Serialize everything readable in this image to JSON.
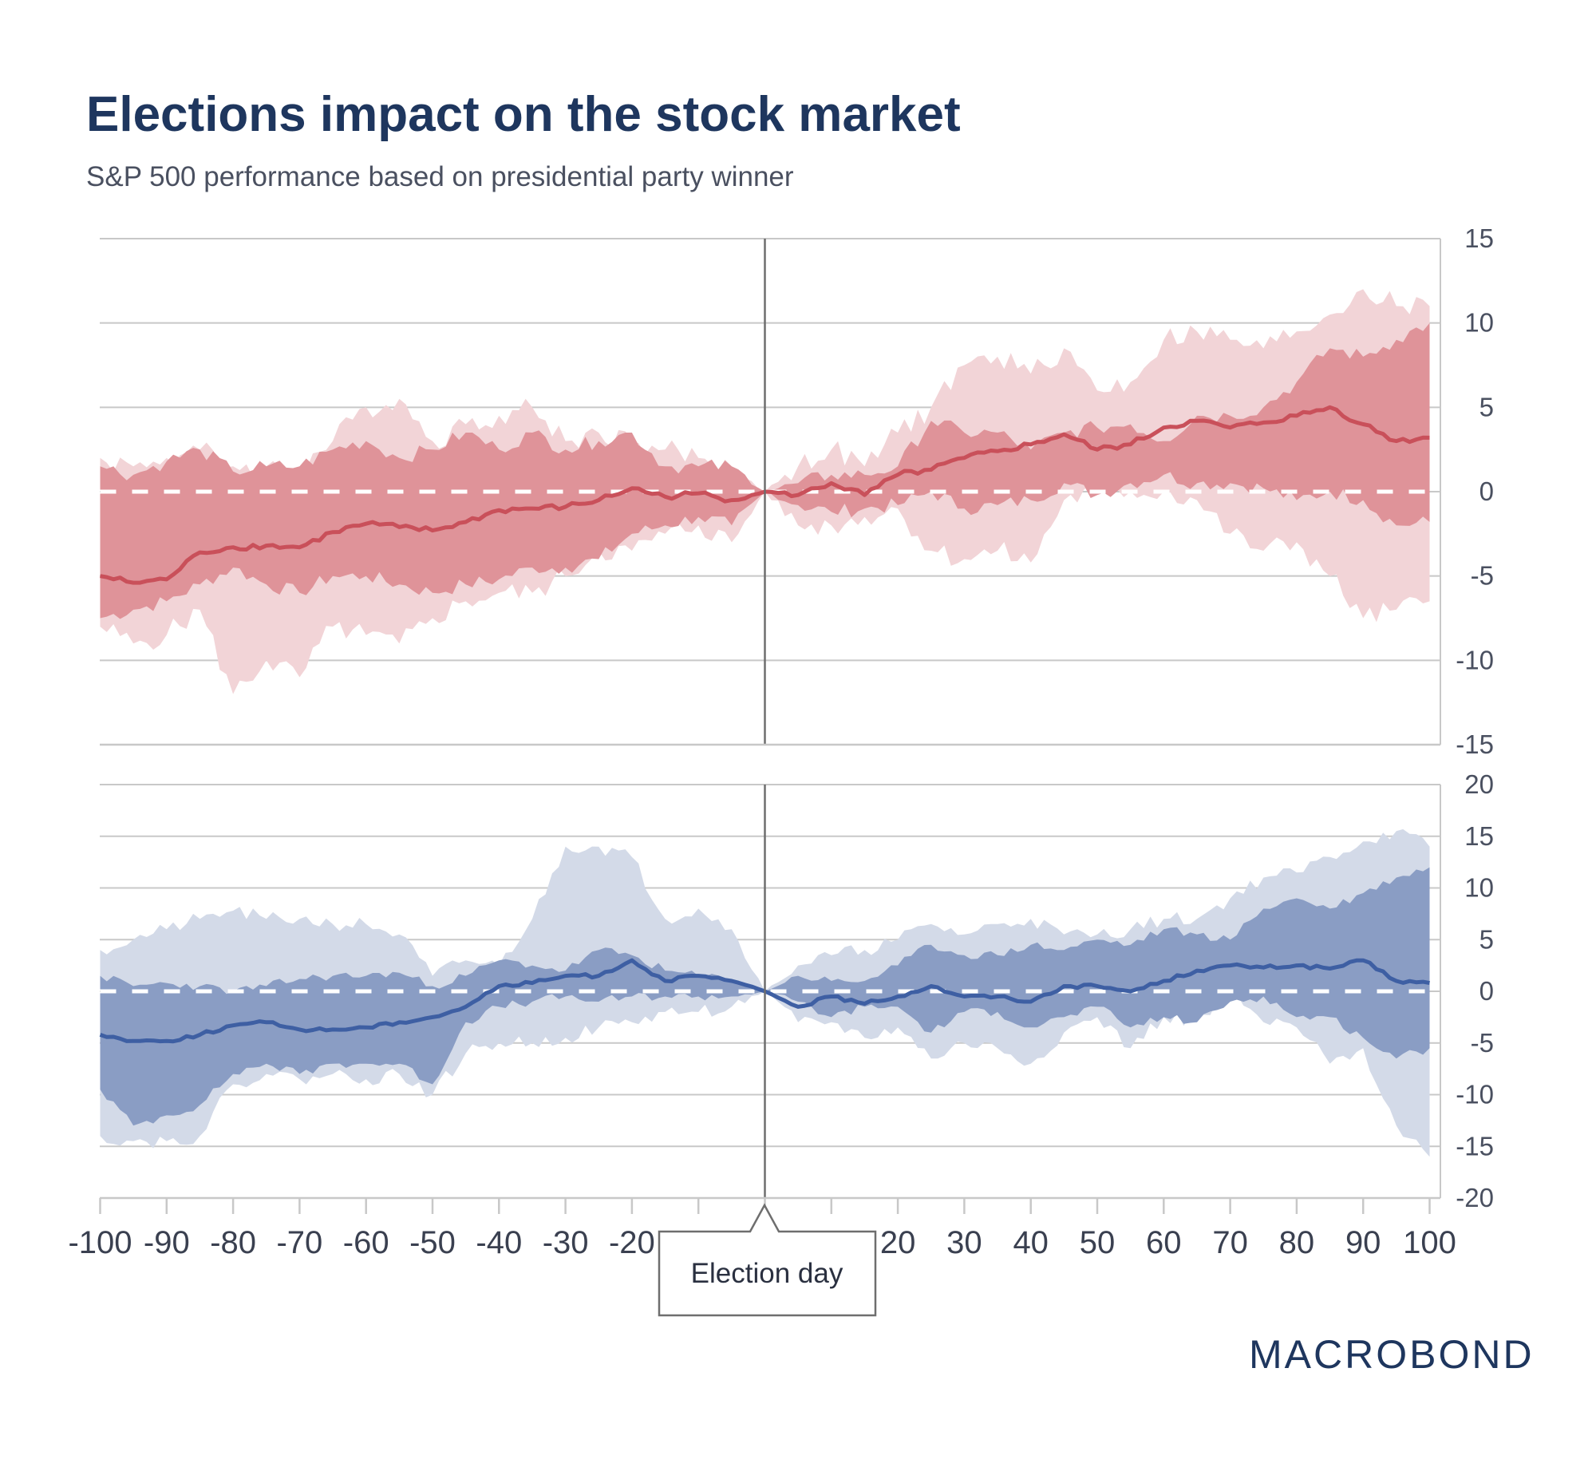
{
  "title": "Elections impact on the stock market",
  "subtitle": "S&P 500 performance based on presidential party winner",
  "annotation": "Election day",
  "logo": "MACROBOND",
  "colors": {
    "title": "#1e365e",
    "red_line": "#c9505a",
    "red_inner": "#df9399",
    "red_outer": "#f2d4d7",
    "blue_line": "#3e5fa3",
    "blue_inner": "#8a9dc4",
    "blue_outer": "#d3dae8",
    "zero_line": "#ffffff",
    "election_line": "#6e6e6e"
  },
  "chart_data": [
    {
      "type": "area",
      "x": [
        -100,
        -95,
        -90,
        -85,
        -80,
        -75,
        -70,
        -65,
        -60,
        -55,
        -50,
        -45,
        -40,
        -35,
        -30,
        -25,
        -20,
        -15,
        -10,
        -5,
        0,
        5,
        10,
        15,
        20,
        25,
        30,
        35,
        40,
        45,
        50,
        55,
        60,
        65,
        70,
        75,
        80,
        85,
        90,
        95,
        100
      ],
      "xlim": [
        -100,
        100
      ],
      "ylim": [
        -15,
        15
      ],
      "yticks": [
        -15,
        -10,
        -5,
        0,
        5,
        10,
        15
      ],
      "grid": true,
      "zero_line": "dashed",
      "color_theme": "red",
      "series": [
        {
          "role": "outer_band_upper",
          "values": [
            2,
            1.5,
            2,
            2.5,
            1.5,
            1.5,
            1.5,
            3,
            5,
            5.5,
            3,
            4,
            4.5,
            5,
            3,
            3.5,
            3,
            2.5,
            2,
            1.5,
            0,
            1.5,
            2.5,
            1.5,
            3.5,
            5,
            7.5,
            8,
            7,
            8.5,
            6,
            6.5,
            9,
            9.5,
            9,
            8.5,
            9.5,
            10.5,
            12,
            11,
            11
          ]
        },
        {
          "role": "outer_band_lower",
          "values": [
            -8,
            -9,
            -8.5,
            -7,
            -12,
            -10,
            -11,
            -8,
            -8.5,
            -9,
            -7.5,
            -6.5,
            -6,
            -6,
            -5,
            -3.5,
            -3.5,
            -2.5,
            -2,
            -3,
            0,
            -2,
            -2,
            -1.5,
            -1,
            -3.5,
            -4,
            -3.5,
            -4.2,
            -0.5,
            0,
            0,
            0,
            -0.5,
            -2.5,
            -3.5,
            -3,
            -5,
            -7.5,
            -7,
            -6.5
          ]
        },
        {
          "role": "inner_band_upper",
          "values": [
            1.5,
            1,
            1.8,
            2.5,
            1.2,
            1.5,
            1.5,
            2.5,
            3,
            2,
            2.5,
            3.5,
            2.5,
            3.5,
            2.5,
            3,
            3.5,
            1.5,
            1.5,
            1.5,
            0,
            0.5,
            1,
            1,
            1.5,
            4.2,
            3.5,
            3.5,
            2.5,
            3.5,
            3.8,
            4,
            3,
            4.5,
            4.5,
            5,
            6.5,
            8.5,
            8,
            9,
            10
          ]
        },
        {
          "role": "inner_band_lower",
          "values": [
            -7.5,
            -7,
            -6.5,
            -5.5,
            -4.5,
            -5.5,
            -6,
            -5,
            -5,
            -5.5,
            -6,
            -5.5,
            -5.2,
            -4.5,
            -4.5,
            -4,
            -2.5,
            -2,
            -1.5,
            -2,
            0,
            -0.8,
            -1.2,
            -1,
            -0.8,
            0,
            -1,
            -0.8,
            -0.5,
            0.5,
            -0.2,
            0.5,
            1,
            0.5,
            0.5,
            0.2,
            -0.5,
            0,
            -0.5,
            -2,
            -1.8
          ]
        },
        {
          "role": "median",
          "values": [
            -5,
            -5.4,
            -5.2,
            -3.6,
            -3.3,
            -3.2,
            -3.3,
            -2.4,
            -1.9,
            -2.1,
            -2.3,
            -1.8,
            -1.1,
            -1,
            -0.9,
            -0.5,
            0.2,
            -0.3,
            -0.1,
            -0.5,
            0,
            -0.2,
            0.5,
            -0.2,
            1,
            1.3,
            2,
            2.4,
            2.8,
            3.4,
            2.5,
            2.8,
            3.8,
            4.2,
            3.8,
            4.1,
            4.5,
            5,
            4,
            3,
            3.2
          ]
        }
      ]
    },
    {
      "type": "area",
      "x": [
        -100,
        -95,
        -90,
        -85,
        -80,
        -75,
        -70,
        -65,
        -60,
        -55,
        -50,
        -45,
        -40,
        -35,
        -30,
        -25,
        -20,
        -15,
        -10,
        -5,
        0,
        5,
        10,
        15,
        20,
        25,
        30,
        35,
        40,
        45,
        50,
        55,
        60,
        65,
        70,
        75,
        80,
        85,
        90,
        95,
        100
      ],
      "xlim": [
        -100,
        100
      ],
      "ylim": [
        -20,
        20
      ],
      "yticks": [
        -20,
        -15,
        -10,
        -5,
        0,
        5,
        10,
        15,
        20
      ],
      "xticks": [
        -100,
        -90,
        -80,
        -70,
        -60,
        -50,
        -40,
        -30,
        -20,
        -10,
        0,
        10,
        20,
        30,
        40,
        50,
        60,
        70,
        80,
        90,
        100
      ],
      "grid": true,
      "zero_line": "dashed",
      "color_theme": "blue",
      "series": [
        {
          "role": "outer_band_upper",
          "values": [
            4,
            5,
            6,
            7,
            7.8,
            7,
            7,
            6.5,
            6.5,
            5.5,
            1.5,
            3,
            2.5,
            7,
            14,
            14,
            13,
            7,
            8,
            6,
            0,
            2.5,
            3.5,
            4,
            5,
            6.5,
            5.5,
            6.5,
            7,
            5.5,
            5.5,
            6,
            7,
            7,
            9,
            11,
            11.5,
            13,
            14.5,
            15.5,
            14
          ]
        },
        {
          "role": "outer_band_lower",
          "values": [
            -14,
            -14.5,
            -14.5,
            -14,
            -9,
            -8,
            -8.5,
            -8,
            -8.5,
            -8,
            -10,
            -6,
            -5,
            -5,
            -4.5,
            -3.5,
            -3,
            -2,
            -2,
            -1.5,
            0,
            -3,
            -3,
            -4.5,
            -3.5,
            -6.5,
            -5,
            -5.5,
            -7,
            -4,
            -2.5,
            -5.5,
            -2.5,
            -3,
            -0.5,
            -3,
            -3.5,
            -7,
            -5.5,
            -13,
            -16
          ]
        },
        {
          "role": "inner_band_upper",
          "values": [
            1.5,
            0.5,
            0.8,
            0.5,
            0,
            0.5,
            1.2,
            1.5,
            1.5,
            1.8,
            0.5,
            1.5,
            3,
            2.5,
            2,
            4,
            3.5,
            2,
            1.5,
            1.2,
            0,
            1.5,
            1,
            1,
            2.5,
            4.5,
            3.5,
            3.5,
            4.5,
            4,
            5,
            4.5,
            6,
            5.5,
            5,
            8,
            9,
            8,
            9.5,
            11,
            12
          ]
        },
        {
          "role": "inner_band_lower",
          "values": [
            -9.5,
            -13,
            -12,
            -11,
            -8,
            -7,
            -8,
            -7,
            -7,
            -7,
            -9,
            -3,
            -1.5,
            -1,
            -0.5,
            -1,
            -0.5,
            -0.5,
            -0.5,
            -0.5,
            0,
            -1,
            -2.5,
            -1.5,
            -1.5,
            -4,
            -2,
            -2,
            -3.5,
            -2.5,
            -1.5,
            -3.5,
            -2.5,
            -3,
            -1,
            -0.5,
            -2.5,
            -2.5,
            -4.5,
            -6.5,
            -5.5
          ]
        },
        {
          "role": "median",
          "values": [
            -4.2,
            -4.8,
            -4.8,
            -4.2,
            -3.3,
            -3,
            -3.7,
            -3.7,
            -3.5,
            -3,
            -2.5,
            -1.5,
            0.5,
            0.8,
            1.5,
            1.5,
            3,
            1,
            1.5,
            1,
            0,
            -1.5,
            -0.5,
            -1.2,
            -0.5,
            0.5,
            -0.5,
            -0.5,
            -1,
            0.5,
            0.5,
            0,
            1,
            2,
            2.5,
            2.3,
            2.5,
            2.2,
            3,
            1,
            0.8
          ]
        }
      ]
    }
  ]
}
